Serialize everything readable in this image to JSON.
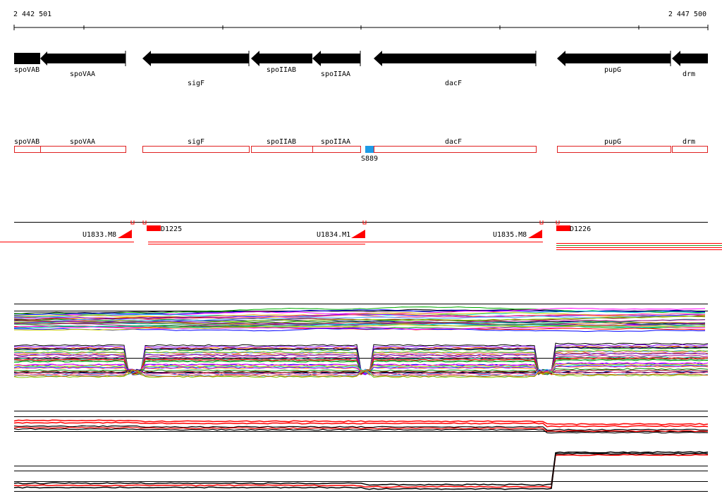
{
  "ruler": {
    "start_label": "2 442 501",
    "end_label": "2 447 500",
    "start": 2442501,
    "end": 2447500,
    "tick_positions": [
      2443500,
      2444500,
      2445500,
      2446500
    ]
  },
  "genes": [
    {
      "name": "spoVAB",
      "start": 2442501,
      "end": 2442700
    },
    {
      "name": "spoVAA",
      "start": 2442700,
      "end": 2443310
    },
    {
      "name": "sigF",
      "start": 2443420,
      "end": 2444190
    },
    {
      "name": "spoIIAB",
      "start": 2444200,
      "end": 2444640
    },
    {
      "name": "spoIIAA",
      "start": 2444640,
      "end": 2444990
    },
    {
      "name": "dacF",
      "start": 2445090,
      "end": 2446230
    },
    {
      "name": "pupG",
      "start": 2446380,
      "end": 2447200
    },
    {
      "name": "drm",
      "start": 2447210,
      "end": 2447500
    }
  ],
  "gene_label_rows": [
    "spoVAB",
    "spoVAA",
    "sigF",
    "spoIIAB",
    "spoIIAA",
    "dacF",
    "pupG",
    "drm"
  ],
  "site": {
    "label": "S889",
    "color": "#1e9be6"
  },
  "upstream_features": [
    {
      "label": "U1833.M8"
    },
    {
      "label": "U1834.M1"
    },
    {
      "label": "U1835.M8"
    }
  ],
  "downstream_features": [
    {
      "label": "D1225"
    },
    {
      "label": "D1226"
    }
  ],
  "colors": {
    "gene_arrow": "#000000",
    "gene_box": "#e02020",
    "feature": "#ff0000",
    "site": "#1e9be6"
  }
}
